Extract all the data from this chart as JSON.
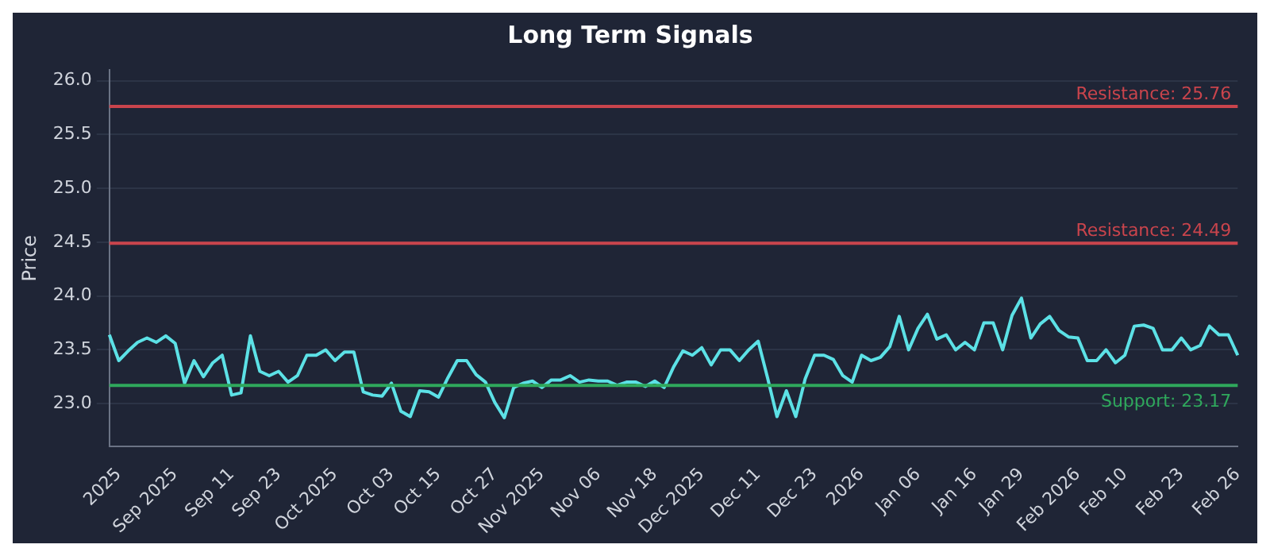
{
  "chart_data": {
    "type": "line",
    "title": "Long Term Signals",
    "ylabel": "Price",
    "categories": [
      null,
      "2025",
      null,
      null,
      null,
      null,
      null,
      "Sep 2025",
      null,
      null,
      null,
      null,
      null,
      "Sep 11",
      null,
      null,
      null,
      null,
      "Sep 23",
      null,
      null,
      null,
      null,
      null,
      "Oct 2025",
      null,
      null,
      null,
      null,
      null,
      "Oct 03",
      null,
      null,
      null,
      null,
      "Oct 15",
      null,
      null,
      null,
      null,
      null,
      "Oct 27",
      null,
      null,
      null,
      null,
      "Nov 2025",
      null,
      null,
      null,
      null,
      null,
      "Nov 06",
      null,
      null,
      null,
      null,
      null,
      "Nov 18",
      null,
      null,
      null,
      null,
      "Dec 2025",
      null,
      null,
      null,
      null,
      null,
      "Dec 11",
      null,
      null,
      null,
      null,
      null,
      "Dec 23",
      null,
      null,
      null,
      null,
      "2026",
      null,
      null,
      null,
      null,
      null,
      "Jan 06",
      null,
      null,
      null,
      null,
      null,
      "Jan 16",
      null,
      null,
      null,
      null,
      "Jan 29",
      null,
      null,
      null,
      null,
      null,
      "Feb 2026",
      null,
      null,
      null,
      null,
      "Feb 10",
      null,
      null,
      null,
      null,
      null,
      "Feb 23",
      null,
      null,
      null,
      null,
      null,
      "Feb 26"
    ],
    "series": [
      {
        "color": "#5ce1e6",
        "values": [
          23.64,
          23.4,
          23.49,
          23.57,
          23.61,
          23.57,
          23.63,
          23.56,
          23.19,
          23.4,
          23.25,
          23.38,
          23.45,
          23.08,
          23.1,
          23.63,
          23.3,
          23.26,
          23.3,
          23.2,
          23.26,
          23.45,
          23.45,
          23.5,
          23.4,
          23.48,
          23.48,
          23.11,
          23.08,
          23.07,
          23.19,
          22.93,
          22.88,
          23.12,
          23.11,
          23.06,
          23.24,
          23.4,
          23.4,
          23.27,
          23.2,
          23.01,
          22.87,
          23.15,
          23.19,
          23.21,
          23.15,
          23.22,
          23.22,
          23.26,
          23.2,
          23.22,
          23.21,
          23.21,
          23.17,
          23.2,
          23.2,
          23.16,
          23.21,
          23.15,
          23.34,
          23.49,
          23.45,
          23.52,
          23.36,
          23.5,
          23.5,
          23.4,
          23.5,
          23.58,
          23.24,
          22.88,
          23.12,
          22.88,
          23.23,
          23.45,
          23.45,
          23.41,
          23.26,
          23.2,
          23.45,
          23.4,
          23.43,
          23.53,
          23.81,
          23.5,
          23.7,
          23.83,
          23.6,
          23.64,
          23.5,
          23.57,
          23.5,
          23.75,
          23.75,
          23.5,
          23.82,
          23.98,
          23.61,
          23.74,
          23.81,
          23.68,
          23.62,
          23.61,
          23.4,
          23.4,
          23.5,
          23.38,
          23.45,
          23.72,
          23.73,
          23.7,
          23.5,
          23.5,
          23.61,
          23.5,
          23.54,
          23.72,
          23.64,
          23.64,
          23.45
        ]
      }
    ],
    "ylim": [
      22.6,
      26.1
    ],
    "yticks": [
      {
        "value": 23,
        "label": "23.0"
      },
      23.5,
      {
        "value": 24,
        "label": "24.0"
      },
      24.5,
      {
        "value": 25,
        "label": "25.0"
      },
      25.5,
      {
        "value": 26,
        "label": "26.0"
      }
    ],
    "grid": "y",
    "legend": false,
    "marker": "none",
    "line_style": "solid",
    "ref_lines": [
      {
        "axis": "y",
        "value": 25.76,
        "label": "Resistance: 25.76",
        "color": "#c9444c"
      },
      {
        "axis": "y",
        "value": 24.49,
        "label": "Resistance: 24.49",
        "color": "#c9444c"
      },
      {
        "axis": "y",
        "value": 23.17,
        "label": "Support: 23.17",
        "color": "#2fa85c"
      }
    ]
  }
}
